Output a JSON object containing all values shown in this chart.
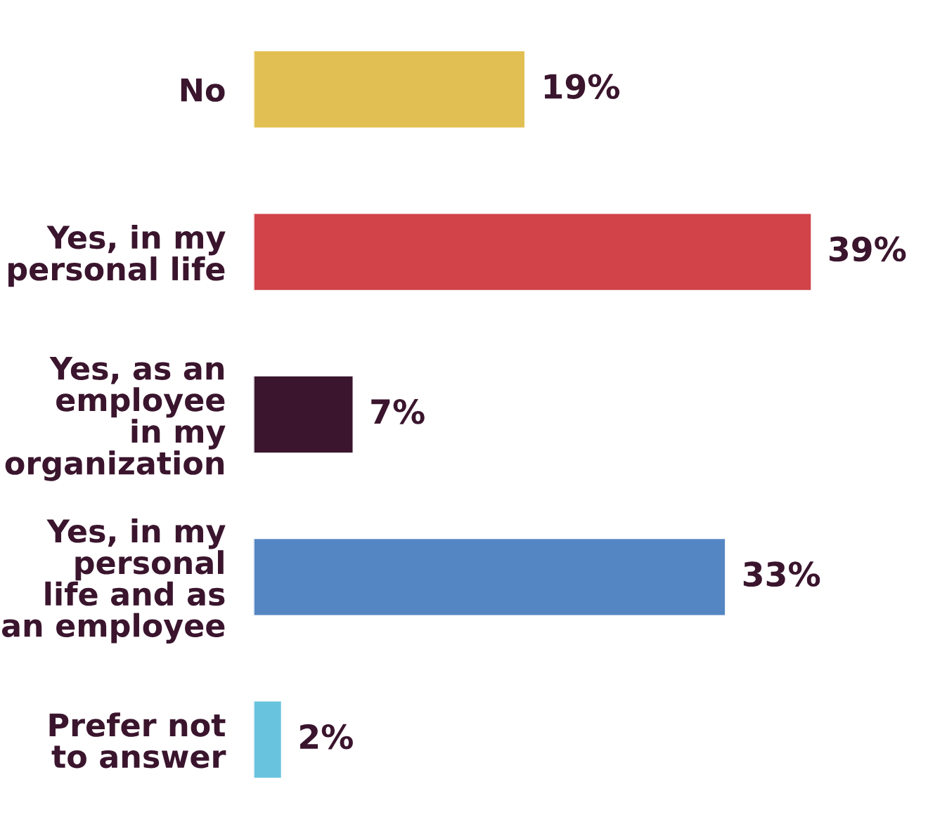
{
  "chart_data": {
    "type": "bar",
    "orientation": "horizontal",
    "categories": [
      "No",
      "Yes, in my\npersonal life",
      "Yes, as an\nemployee\nin my\norganization",
      "Yes, in my\npersonal\nlife and as\nan employee",
      "Prefer not\nto answer"
    ],
    "values": [
      19,
      39,
      7,
      33,
      2
    ],
    "colors": [
      "#e2bf52",
      "#d14249",
      "#3a152d",
      "#5586c4",
      "#68c3de"
    ],
    "value_labels": [
      "19%",
      "39%",
      "7%",
      "33%",
      "2%"
    ],
    "grid": false,
    "legend": false
  }
}
